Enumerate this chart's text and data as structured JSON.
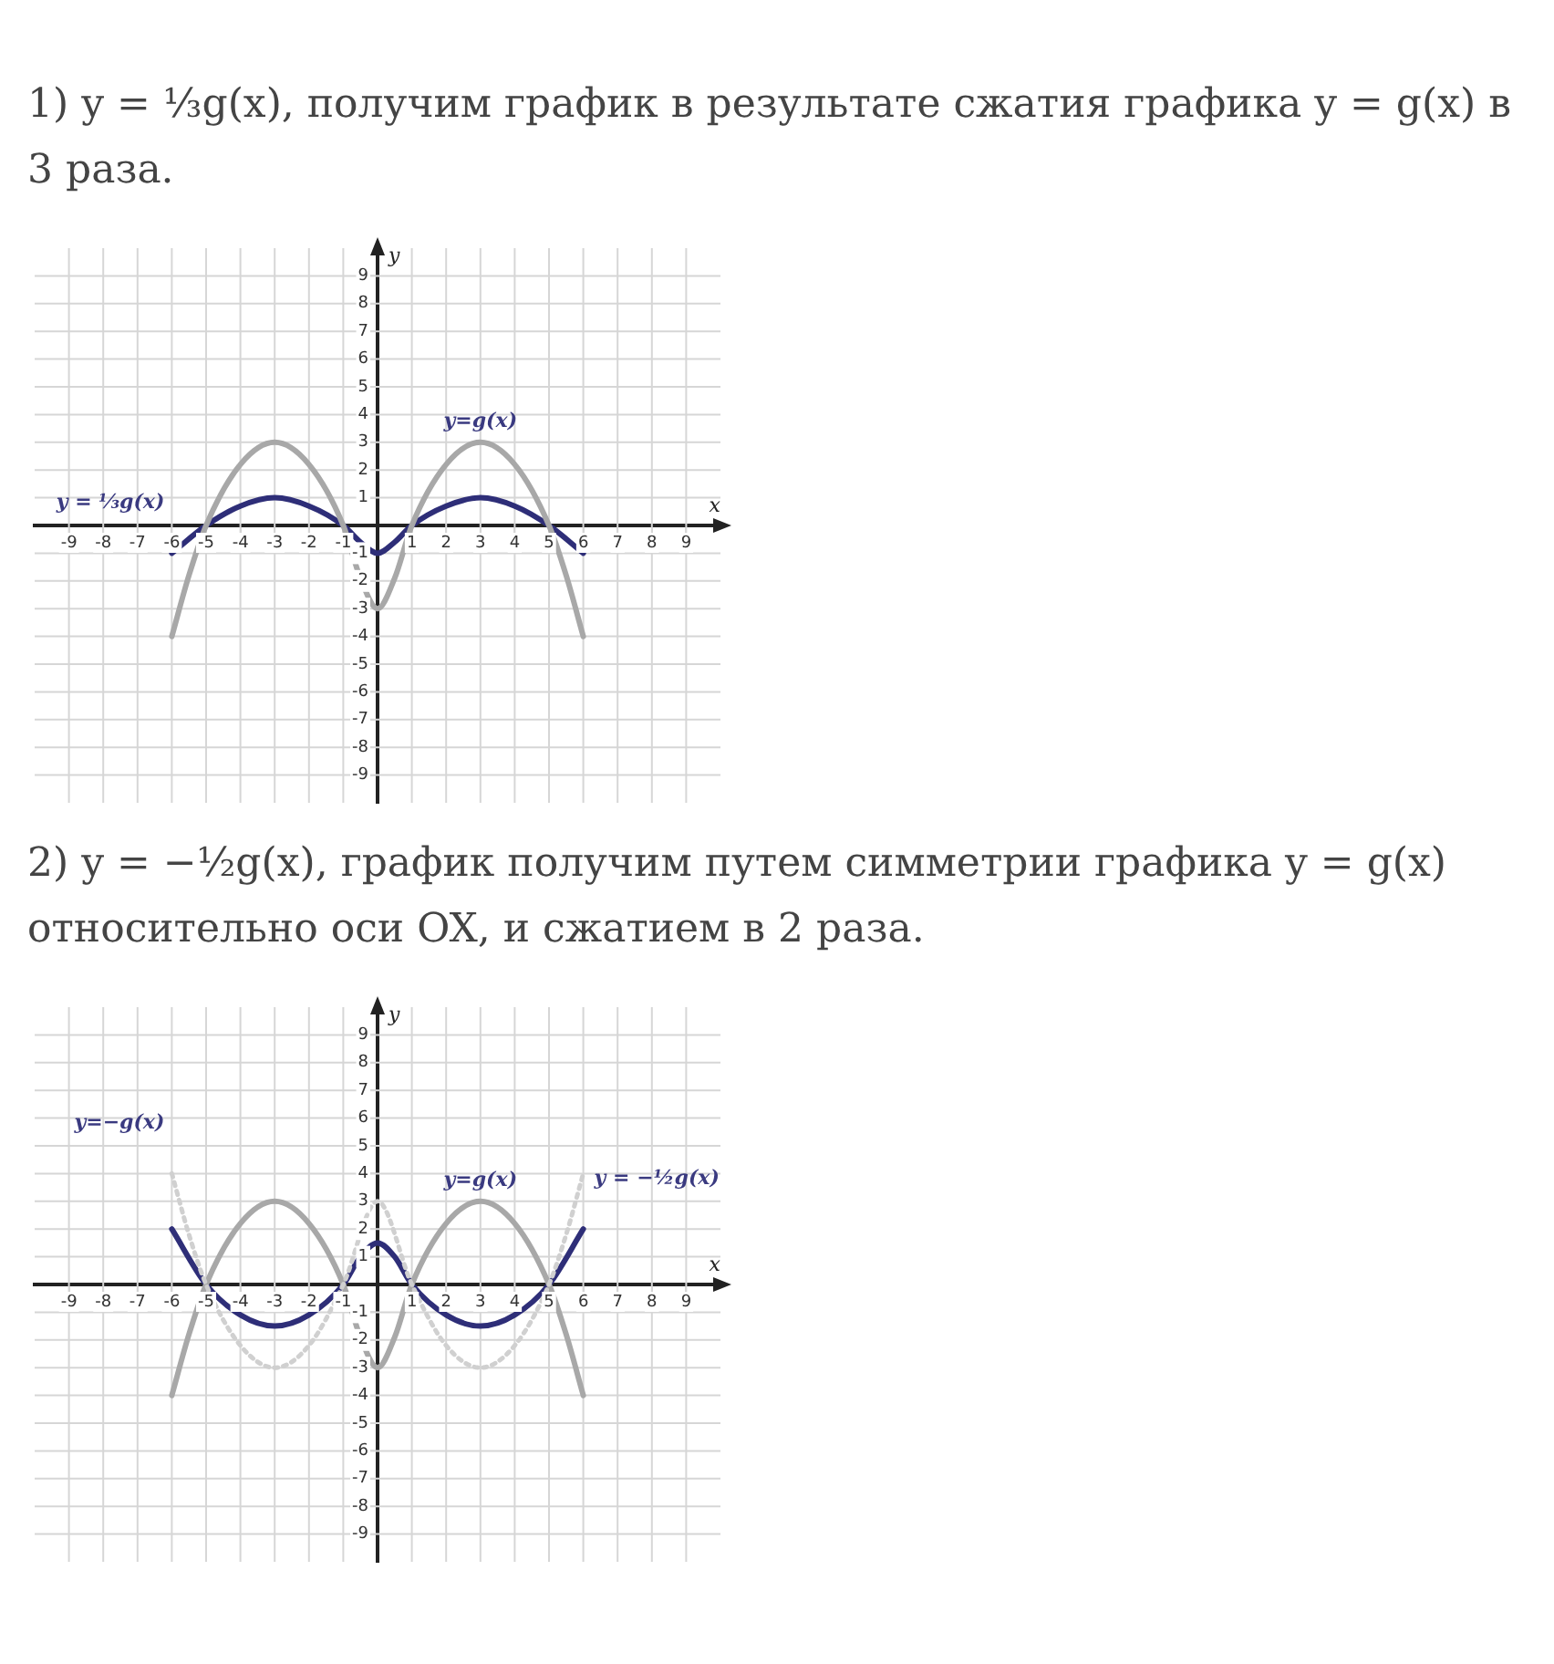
{
  "chart_data": [
    {
      "type": "line",
      "title": "1) y = ⅓g(x), получим график в результате сжатия графика y = g(x) в 3 раза.",
      "xlabel": "x",
      "ylabel": "y",
      "xlim": [
        -10,
        10
      ],
      "ylim": [
        -10,
        10
      ],
      "xticks": [
        -9,
        -8,
        -7,
        -6,
        -5,
        -4,
        -3,
        -2,
        -1,
        1,
        2,
        3,
        4,
        5,
        6,
        7,
        8,
        9
      ],
      "yticks": [
        -9,
        -8,
        -7,
        -6,
        -5,
        -4,
        -3,
        -2,
        -1,
        1,
        2,
        3,
        4,
        5,
        6,
        7,
        8,
        9
      ],
      "grid": true,
      "legend": false,
      "marker": "none",
      "series": [
        {
          "color": "#a8a8a8",
          "x": [
            -6,
            -5.5,
            -5,
            -4,
            -3,
            -2,
            -1,
            -0.5,
            0,
            0.5,
            1,
            2,
            3,
            4,
            5,
            5.5,
            6
          ],
          "values": [
            -4,
            -1.8,
            0,
            2.2,
            3,
            2.2,
            0,
            -1.9,
            -3,
            -1.9,
            0,
            2.2,
            3,
            2.2,
            0,
            -1.8,
            -4
          ]
        },
        {
          "color": "#2e2e78",
          "x": [
            -6,
            -5,
            -4,
            -3,
            -2,
            -1,
            -0.5,
            0,
            0.5,
            1,
            2,
            3,
            4,
            5,
            6
          ],
          "values": [
            -1,
            0,
            0.7,
            1,
            0.7,
            0,
            -0.6,
            -1,
            -0.6,
            0,
            0.7,
            1,
            0.7,
            0,
            -1
          ]
        }
      ],
      "annotations": [
        {
          "text": "y=g(x)",
          "x": 3,
          "y": 3
        },
        {
          "text": "y = ⅓g(x)",
          "x": -6,
          "y": -1
        }
      ]
    },
    {
      "type": "line",
      "title": "2) y = −½g(x), график получим путем симметрии графика y = g(x) относительно оси OX, и сжатием в 2 раза.",
      "xlabel": "x",
      "ylabel": "y",
      "xlim": [
        -10,
        10
      ],
      "ylim": [
        -10,
        10
      ],
      "xticks": [
        -9,
        -8,
        -7,
        -6,
        -5,
        -4,
        -3,
        -2,
        -1,
        1,
        2,
        3,
        4,
        5,
        6,
        7,
        8,
        9
      ],
      "yticks": [
        -9,
        -8,
        -7,
        -6,
        -5,
        -4,
        -3,
        -2,
        -1,
        1,
        2,
        3,
        4,
        5,
        6,
        7,
        8,
        9
      ],
      "grid": true,
      "legend": false,
      "marker": "none",
      "series": [
        {
          "color": "#d0d0d0",
          "line_style": "dotted",
          "x": [
            -6,
            -5.5,
            -5,
            -4,
            -3,
            -2,
            -1,
            0,
            1,
            2,
            3,
            4,
            5,
            5.5,
            6
          ],
          "values": [
            4,
            1.8,
            0,
            -2.2,
            -3,
            -2.2,
            0,
            3,
            0,
            -2.2,
            -3,
            -2.2,
            0,
            1.8,
            4
          ]
        },
        {
          "color": "#a8a8a8",
          "x": [
            -6,
            -5.5,
            -5,
            -4,
            -3,
            -2,
            -1,
            -0.5,
            0,
            0.5,
            1,
            2,
            3,
            4,
            5,
            5.5,
            6
          ],
          "values": [
            -4,
            -1.8,
            0,
            2.2,
            3,
            2.2,
            0,
            -1.9,
            -3,
            -1.9,
            0,
            2.2,
            3,
            2.2,
            0,
            -1.8,
            -4
          ]
        },
        {
          "color": "#2e2e78",
          "x": [
            -6,
            -5,
            -4,
            -3,
            -2,
            -1,
            -0.5,
            0,
            0.5,
            1,
            2,
            3,
            4,
            5,
            6
          ],
          "values": [
            2,
            0,
            -1.1,
            -1.5,
            -1.1,
            0,
            1,
            1.5,
            1,
            0,
            -1.1,
            -1.5,
            -1.1,
            0,
            2
          ]
        }
      ],
      "annotations": [
        {
          "text": "y=−g(x)",
          "x": -6,
          "y": 4
        },
        {
          "text": "y=g(x)",
          "x": 3,
          "y": 3
        },
        {
          "text": "y = −½g(x)",
          "x": 6,
          "y": 2
        }
      ]
    }
  ]
}
